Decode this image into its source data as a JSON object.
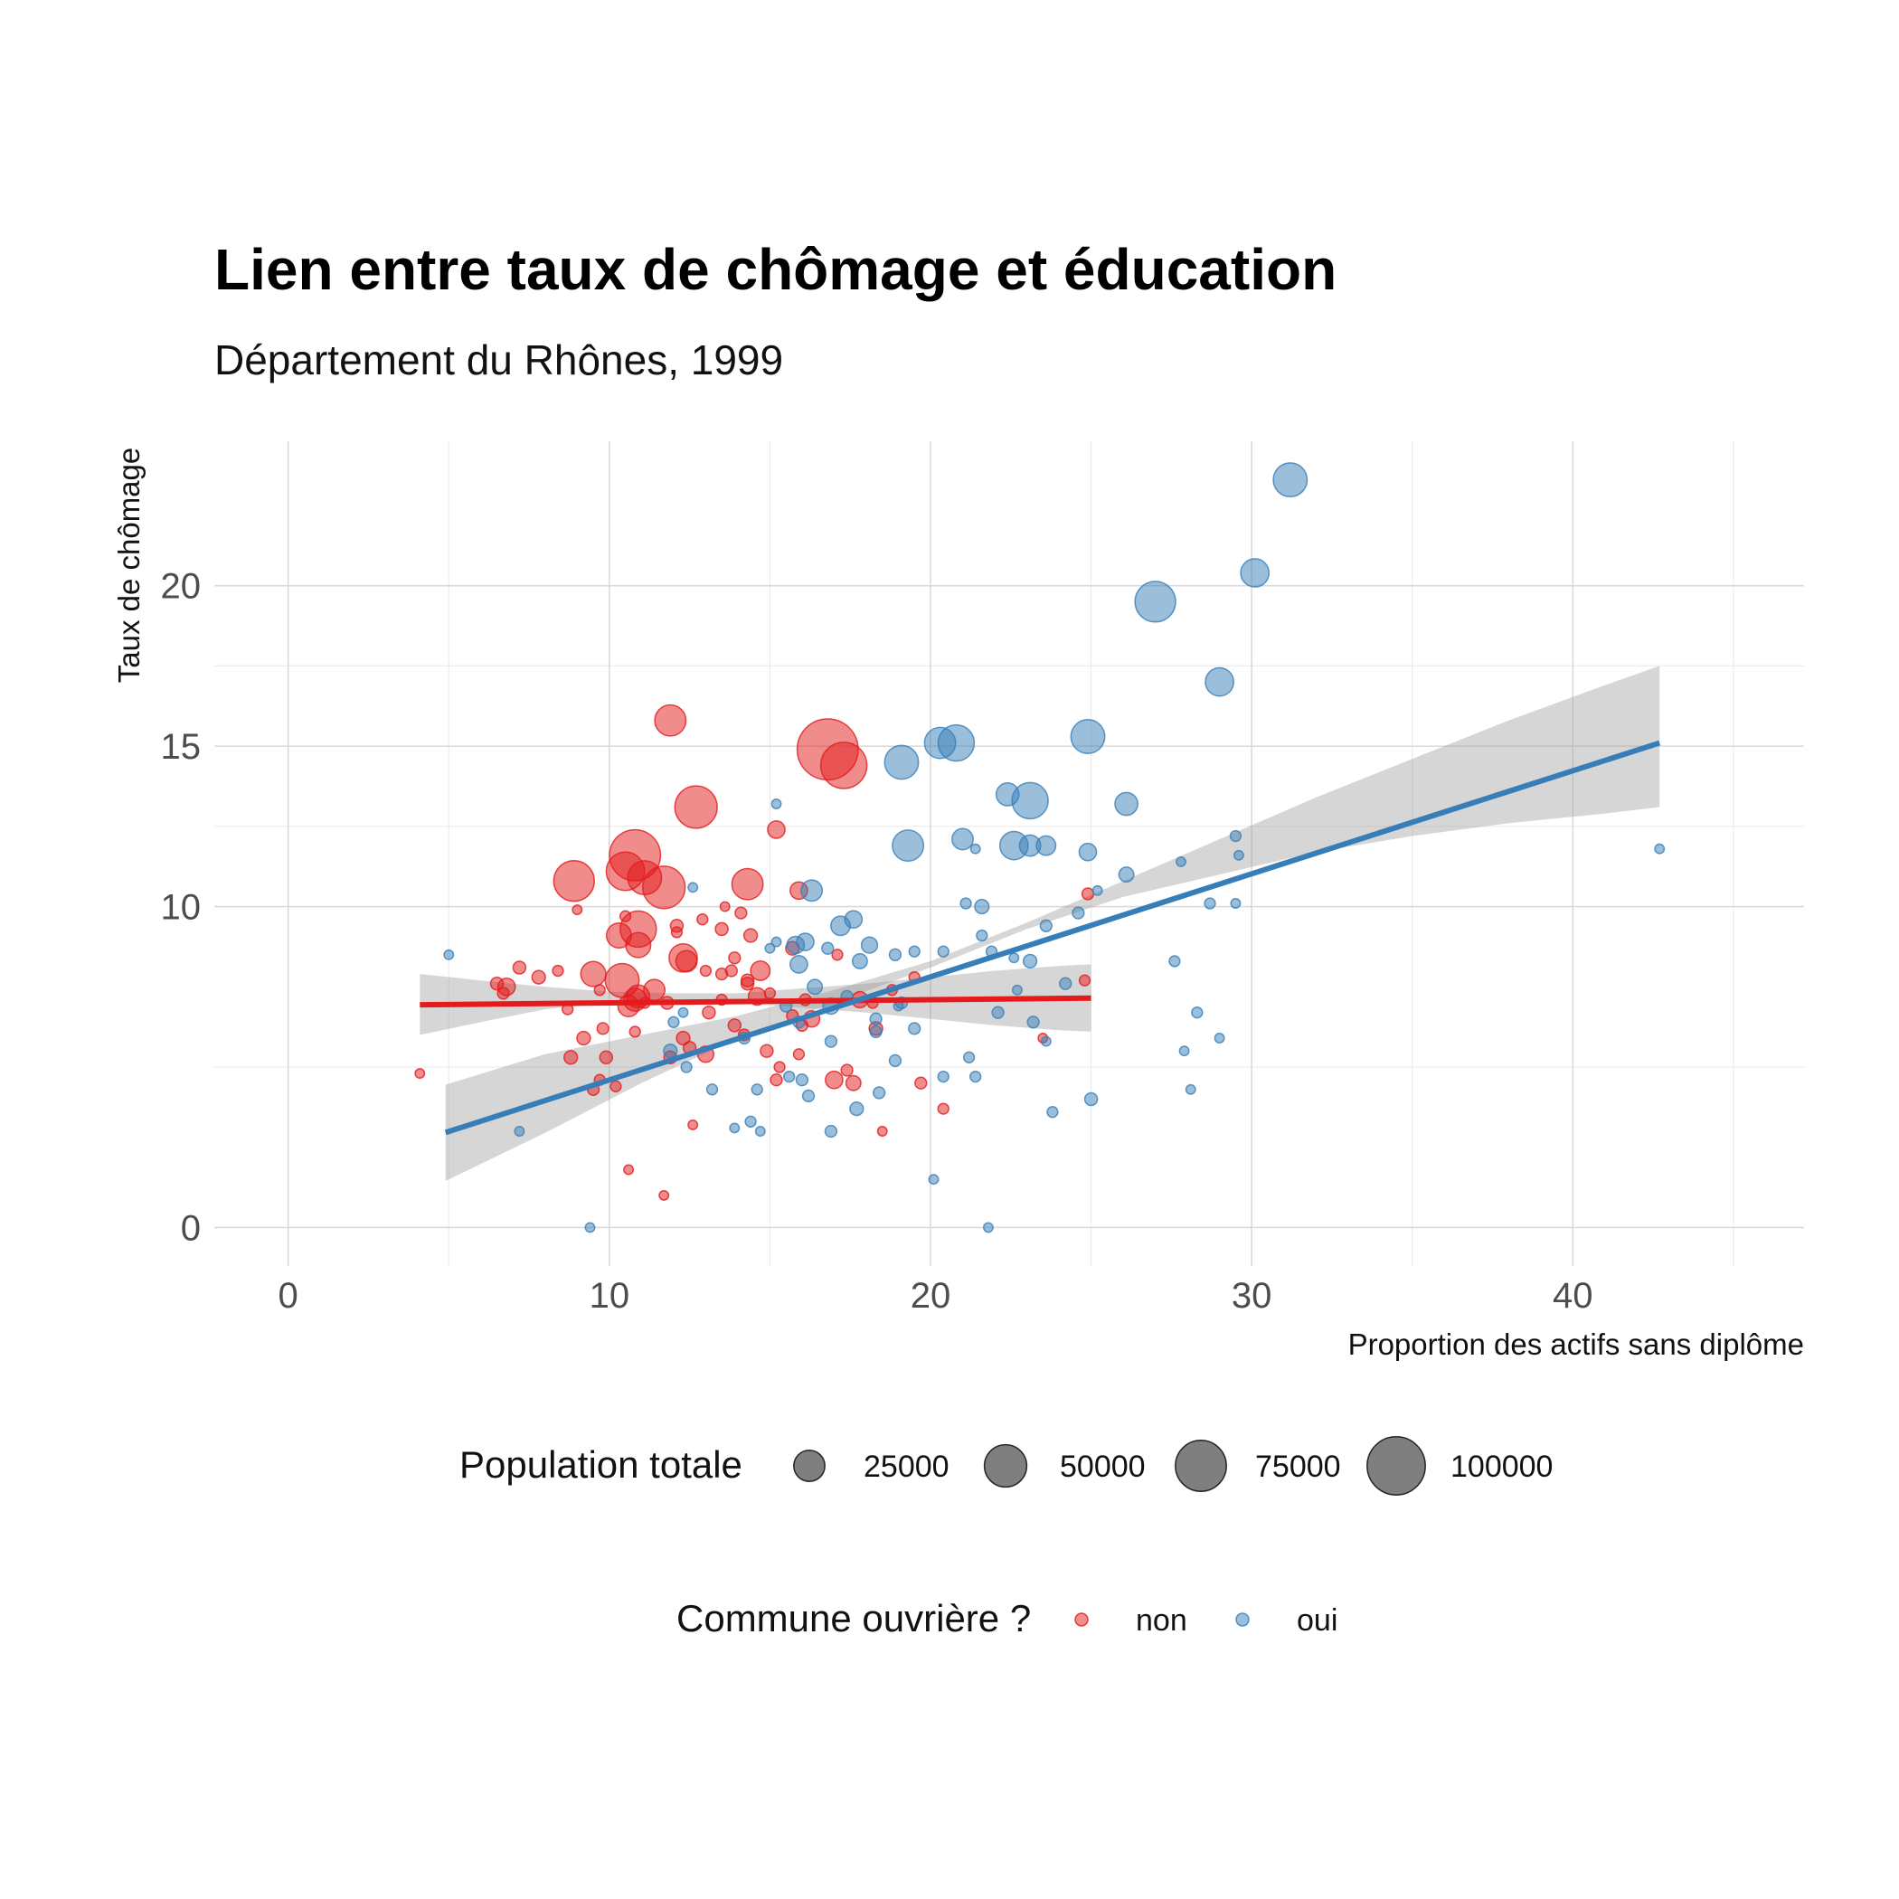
{
  "chart_data": {
    "type": "scatter",
    "title": "Lien entre taux de chômage et éducation",
    "subtitle": "Département du Rhônes, 1999",
    "xlabel": "Proportion des actifs sans diplôme",
    "ylabel": "Taux de chômage",
    "xlim": [
      -2.3,
      47.2
    ],
    "ylim": [
      -1.2,
      24.5
    ],
    "x_ticks": [
      0,
      10,
      20,
      30,
      40
    ],
    "y_ticks": [
      0,
      10,
      15,
      20
    ],
    "x_ticks_labels": [
      "0",
      "10",
      "20",
      "30",
      "40"
    ],
    "y_ticks_labels": [
      "0",
      "10",
      "15",
      "20"
    ],
    "grid": true,
    "colors": {
      "non": "#e41a1c",
      "oui": "#377eb8"
    },
    "legend_size": {
      "title": "Population totale",
      "placement": "bottom",
      "values": [
        25000,
        50000,
        75000,
        100000
      ],
      "labels": [
        "25000",
        "50000",
        "75000",
        "100000"
      ]
    },
    "legend_color": {
      "title": "Commune ouvrière ?",
      "placement": "bottom",
      "labels": [
        "non",
        "oui"
      ]
    },
    "series": [
      {
        "name": "non",
        "points": [
          [
            11.9,
            15.8,
            25000
          ],
          [
            16.8,
            14.9,
            110000
          ],
          [
            17.3,
            14.4,
            60000
          ],
          [
            12.7,
            13.1,
            50000
          ],
          [
            15.2,
            12.4,
            6000
          ],
          [
            10.8,
            11.6,
            75000
          ],
          [
            10.5,
            11.1,
            40000
          ],
          [
            8.9,
            10.8,
            45000
          ],
          [
            11.1,
            10.9,
            30000
          ],
          [
            11.7,
            10.6,
            50000
          ],
          [
            14.3,
            10.7,
            25000
          ],
          [
            15.9,
            10.5,
            6000
          ],
          [
            10.9,
            9.3,
            35000
          ],
          [
            10.3,
            9.1,
            15000
          ],
          [
            9.0,
            9.9,
            1000
          ],
          [
            10.9,
            8.8,
            15000
          ],
          [
            12.3,
            8.4,
            20000
          ],
          [
            10.4,
            7.7,
            30000
          ],
          [
            9.5,
            7.9,
            15000
          ],
          [
            10.8,
            7.1,
            12000
          ],
          [
            10.6,
            6.9,
            10000
          ],
          [
            11.4,
            7.4,
            10000
          ],
          [
            10.9,
            7.2,
            12000
          ],
          [
            12.4,
            8.3,
            10000
          ],
          [
            14.7,
            8.0,
            8000
          ],
          [
            14.6,
            7.2,
            6000
          ],
          [
            16.3,
            6.5,
            5000
          ],
          [
            17.8,
            7.1,
            5000
          ],
          [
            18.3,
            6.2,
            3000
          ],
          [
            17.0,
            4.6,
            6000
          ],
          [
            17.6,
            4.5,
            4000
          ],
          [
            19.7,
            4.5,
            2000
          ],
          [
            20.4,
            3.7,
            1500
          ],
          [
            15.3,
            5.0,
            1500
          ],
          [
            15.9,
            5.4,
            1500
          ],
          [
            13.0,
            5.4,
            5000
          ],
          [
            12.3,
            5.9,
            3000
          ],
          [
            7.2,
            8.1,
            2500
          ],
          [
            7.8,
            7.8,
            3000
          ],
          [
            6.5,
            7.6,
            2500
          ],
          [
            6.8,
            7.5,
            6000
          ],
          [
            6.7,
            7.3,
            2000
          ],
          [
            4.1,
            4.8,
            1000
          ],
          [
            8.4,
            8.0,
            1500
          ],
          [
            8.7,
            6.8,
            1500
          ],
          [
            9.2,
            5.9,
            3000
          ],
          [
            8.8,
            5.3,
            3000
          ],
          [
            9.8,
            6.2,
            2000
          ],
          [
            10.2,
            4.4,
            1500
          ],
          [
            9.7,
            4.6,
            1500
          ],
          [
            9.5,
            4.3,
            2000
          ],
          [
            9.9,
            5.3,
            2500
          ],
          [
            11.9,
            5.3,
            2500
          ],
          [
            12.5,
            5.6,
            2500
          ],
          [
            13.1,
            6.7,
            2500
          ],
          [
            13.5,
            7.9,
            2000
          ],
          [
            13.9,
            6.3,
            2500
          ],
          [
            14.3,
            7.6,
            2500
          ],
          [
            14.2,
            6.0,
            2000
          ],
          [
            14.9,
            5.5,
            2500
          ],
          [
            15.2,
            4.6,
            2000
          ],
          [
            16.0,
            6.3,
            2000
          ],
          [
            16.1,
            7.1,
            2000
          ],
          [
            14.4,
            9.1,
            3000
          ],
          [
            15.7,
            8.7,
            3000
          ],
          [
            13.5,
            9.3,
            2500
          ],
          [
            12.1,
            9.4,
            2500
          ],
          [
            13.0,
            8.0,
            1500
          ],
          [
            12.1,
            9.2,
            1500
          ],
          [
            14.1,
            9.8,
            2000
          ],
          [
            11.8,
            7.0,
            2500
          ],
          [
            13.8,
            8.0,
            2000
          ],
          [
            14.3,
            7.7,
            2500
          ],
          [
            9.7,
            7.4,
            1500
          ],
          [
            10.8,
            6.1,
            1500
          ],
          [
            11.1,
            7.0,
            1500
          ],
          [
            13.5,
            7.1,
            1500
          ],
          [
            11.7,
            1.0,
            1000
          ],
          [
            10.6,
            1.8,
            1000
          ],
          [
            12.6,
            3.2,
            1000
          ],
          [
            13.6,
            10.0,
            1000
          ],
          [
            17.1,
            8.5,
            1500
          ],
          [
            18.5,
            3.0,
            1000
          ],
          [
            24.8,
            7.7,
            1500
          ],
          [
            24.9,
            10.4,
            2000
          ],
          [
            23.5,
            5.9,
            1000
          ],
          [
            19.5,
            7.8,
            1500
          ],
          [
            18.8,
            7.4,
            1500
          ],
          [
            18.2,
            7.0,
            1500
          ],
          [
            17.4,
            4.9,
            2000
          ],
          [
            15.7,
            6.6,
            2000
          ],
          [
            15.0,
            7.3,
            1500
          ],
          [
            13.9,
            8.4,
            2000
          ],
          [
            12.9,
            9.6,
            1500
          ],
          [
            10.5,
            9.7,
            1500
          ]
        ]
      },
      {
        "name": "oui",
        "points": [
          [
            31.2,
            23.3,
            30000
          ],
          [
            30.1,
            20.4,
            20000
          ],
          [
            27.0,
            19.5,
            45000
          ],
          [
            29.0,
            17.0,
            20000
          ],
          [
            24.9,
            15.3,
            30000
          ],
          [
            20.8,
            15.1,
            35000
          ],
          [
            20.3,
            15.1,
            25000
          ],
          [
            19.1,
            14.5,
            30000
          ],
          [
            23.1,
            13.3,
            35000
          ],
          [
            22.4,
            13.5,
            12000
          ],
          [
            26.1,
            13.2,
            12000
          ],
          [
            21.0,
            12.1,
            10000
          ],
          [
            19.3,
            11.9,
            25000
          ],
          [
            22.6,
            11.9,
            20000
          ],
          [
            23.1,
            11.9,
            10000
          ],
          [
            23.6,
            11.9,
            8000
          ],
          [
            24.9,
            11.7,
            6000
          ],
          [
            16.3,
            10.5,
            10000
          ],
          [
            17.6,
            9.6,
            6000
          ],
          [
            17.2,
            9.4,
            8000
          ],
          [
            16.1,
            8.9,
            6000
          ],
          [
            15.8,
            8.8,
            6000
          ],
          [
            15.2,
            8.9,
            1000
          ],
          [
            15.0,
            8.7,
            1000
          ],
          [
            18.1,
            8.8,
            5000
          ],
          [
            17.8,
            8.3,
            4000
          ],
          [
            16.8,
            8.7,
            2000
          ],
          [
            18.9,
            8.5,
            2000
          ],
          [
            19.5,
            8.6,
            1500
          ],
          [
            20.4,
            8.6,
            1500
          ],
          [
            21.9,
            8.6,
            1500
          ],
          [
            15.9,
            8.2,
            6000
          ],
          [
            16.4,
            7.5,
            4000
          ],
          [
            16.9,
            6.9,
            5000
          ],
          [
            15.5,
            6.9,
            2000
          ],
          [
            15.9,
            6.4,
            2000
          ],
          [
            16.9,
            5.8,
            2000
          ],
          [
            18.3,
            6.1,
            2000
          ],
          [
            19.1,
            7.0,
            2000
          ],
          [
            19.5,
            6.2,
            2000
          ],
          [
            20.4,
            4.7,
            1500
          ],
          [
            21.4,
            4.7,
            1500
          ],
          [
            21.2,
            5.3,
            1500
          ],
          [
            22.1,
            6.7,
            2000
          ],
          [
            23.1,
            8.3,
            3000
          ],
          [
            23.6,
            9.4,
            2000
          ],
          [
            24.6,
            9.8,
            2000
          ],
          [
            24.2,
            7.6,
            2000
          ],
          [
            25.0,
            4.0,
            2500
          ],
          [
            23.8,
            3.6,
            1500
          ],
          [
            23.2,
            6.4,
            2000
          ],
          [
            21.6,
            9.1,
            1500
          ],
          [
            21.1,
            10.1,
            1500
          ],
          [
            21.4,
            11.8,
            1000
          ],
          [
            21.6,
            10.0,
            3500
          ],
          [
            26.1,
            11.0,
            4000
          ],
          [
            27.6,
            8.3,
            1500
          ],
          [
            27.8,
            11.4,
            1000
          ],
          [
            28.3,
            6.7,
            1500
          ],
          [
            29.0,
            5.9,
            1000
          ],
          [
            28.7,
            10.1,
            1500
          ],
          [
            29.5,
            12.2,
            1500
          ],
          [
            29.6,
            11.6,
            1000
          ],
          [
            29.5,
            10.1,
            1000
          ],
          [
            27.9,
            5.5,
            1000
          ],
          [
            28.1,
            4.3,
            1000
          ],
          [
            25.2,
            10.5,
            1000
          ],
          [
            22.7,
            7.4,
            1000
          ],
          [
            22.6,
            8.4,
            1000
          ],
          [
            23.6,
            5.8,
            1000
          ],
          [
            19.0,
            6.9,
            1000
          ],
          [
            18.4,
            4.2,
            2000
          ],
          [
            18.9,
            5.2,
            2000
          ],
          [
            18.3,
            6.5,
            2000
          ],
          [
            17.4,
            7.2,
            2000
          ],
          [
            17.7,
            3.7,
            3000
          ],
          [
            16.9,
            3.0,
            2000
          ],
          [
            16.2,
            4.1,
            2000
          ],
          [
            16.0,
            4.6,
            2000
          ],
          [
            15.6,
            4.7,
            1500
          ],
          [
            14.2,
            5.9,
            2000
          ],
          [
            14.6,
            4.3,
            1500
          ],
          [
            14.4,
            3.3,
            1500
          ],
          [
            14.7,
            3.0,
            1000
          ],
          [
            13.9,
            3.1,
            1000
          ],
          [
            13.2,
            4.3,
            1500
          ],
          [
            12.4,
            5.0,
            1500
          ],
          [
            11.9,
            5.5,
            3000
          ],
          [
            12.0,
            6.4,
            1500
          ],
          [
            12.3,
            6.7,
            1000
          ],
          [
            12.6,
            10.6,
            1000
          ],
          [
            15.2,
            13.2,
            1000
          ],
          [
            7.2,
            3.0,
            1000
          ],
          [
            5.0,
            8.5,
            1000
          ],
          [
            9.4,
            0.0,
            1000
          ],
          [
            21.8,
            0.0,
            1000
          ],
          [
            20.1,
            1.5,
            1000
          ],
          [
            42.7,
            11.8,
            1000
          ]
        ]
      }
    ],
    "fits": [
      {
        "series": "non",
        "line": [
          [
            4.1,
            6.94
          ],
          [
            25.0,
            7.15
          ]
        ],
        "band": {
          "x": [
            4.1,
            6.0,
            8.0,
            10.0,
            12.0,
            14.0,
            16.0,
            18.0,
            20.0,
            22.0,
            24.0,
            25.0
          ],
          "lo": [
            6.0,
            6.4,
            6.8,
            7.0,
            7.05,
            7.0,
            6.85,
            6.7,
            6.5,
            6.3,
            6.15,
            6.1
          ],
          "hi": [
            7.9,
            7.7,
            7.5,
            7.35,
            7.3,
            7.3,
            7.45,
            7.6,
            7.8,
            8.0,
            8.15,
            8.2
          ]
        }
      },
      {
        "series": "oui",
        "line": [
          [
            4.9,
            2.96
          ],
          [
            42.7,
            15.1
          ]
        ],
        "band": {
          "x": [
            4.9,
            8.0,
            11.0,
            14.0,
            17.0,
            20.0,
            23.0,
            26.0,
            29.0,
            32.0,
            35.0,
            38.0,
            41.0,
            42.7
          ],
          "lo": [
            1.45,
            2.95,
            4.5,
            5.9,
            7.0,
            8.1,
            9.3,
            10.3,
            11.0,
            11.7,
            12.2,
            12.6,
            12.9,
            13.1
          ],
          "hi": [
            4.45,
            5.4,
            6.0,
            6.6,
            7.4,
            8.3,
            9.5,
            10.8,
            12.1,
            13.4,
            14.6,
            15.8,
            16.9,
            17.5
          ]
        }
      }
    ]
  }
}
